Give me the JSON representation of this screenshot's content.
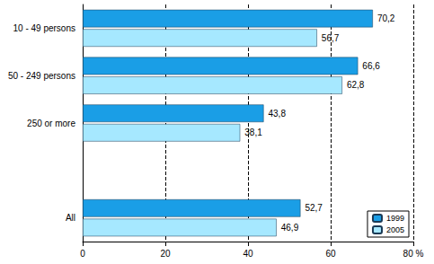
{
  "chart_data": {
    "type": "bar",
    "orientation": "horizontal",
    "categories": [
      "10 - 49 persons",
      "50 - 249 persons",
      "250 or more",
      null,
      "All"
    ],
    "series": [
      {
        "name": "1999",
        "color": "#1a9ee6",
        "values": [
          70.2,
          66.6,
          43.8,
          null,
          52.7
        ],
        "value_labels": [
          "70,2",
          "66,6",
          "43,8",
          null,
          "52,7"
        ]
      },
      {
        "name": "2005",
        "color": "#a6e8ff",
        "values": [
          56.7,
          62.8,
          38.1,
          null,
          46.9
        ],
        "value_labels": [
          "56,7",
          "62,8",
          "38,1",
          null,
          "46,9"
        ]
      }
    ],
    "xlim": [
      0,
      80
    ],
    "xticks": [
      0,
      20,
      40,
      60,
      {
        "value": 80,
        "label": "80 %"
      }
    ],
    "grid": true,
    "legend": "bottom-right",
    "data_labels": true
  }
}
